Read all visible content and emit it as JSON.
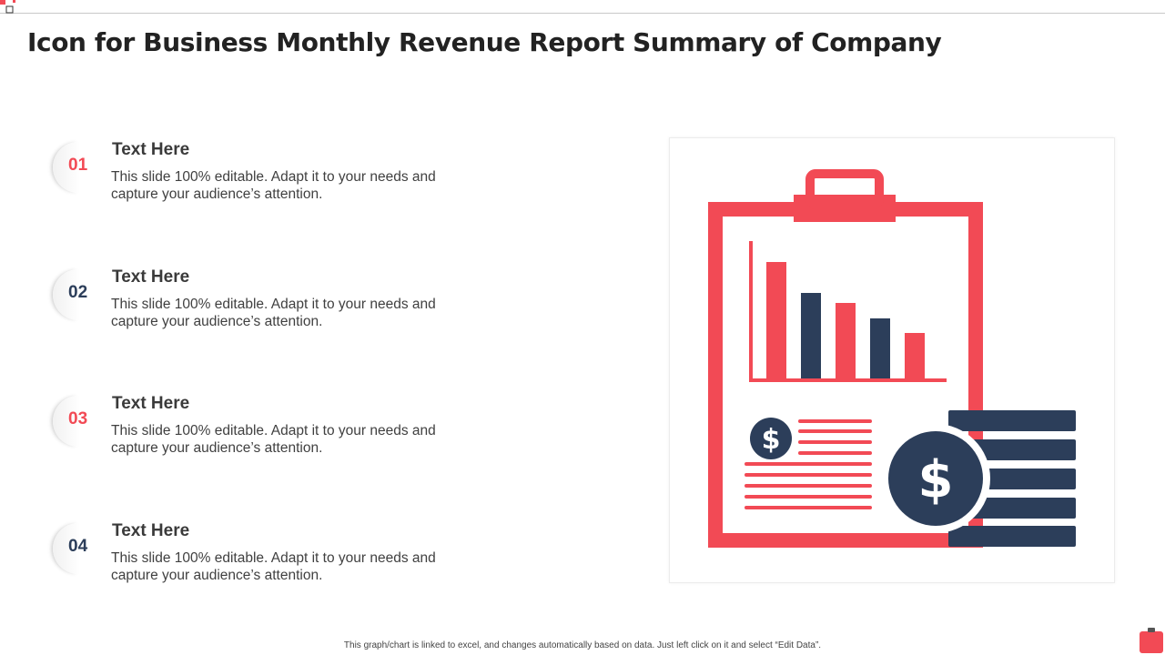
{
  "page": {
    "title": "Icon for Business Monthly Revenue Report Summary of Company"
  },
  "items": [
    {
      "number": "01",
      "heading": "Text Here",
      "body": "This slide 100% editable. Adapt it to your needs and capture your audience’s attention.",
      "accent": "red"
    },
    {
      "number": "02",
      "heading": "Text Here",
      "body": "This slide 100% editable. Adapt it to your needs and capture your audience’s attention.",
      "accent": "navy"
    },
    {
      "number": "03",
      "heading": "Text Here",
      "body": "This slide 100% editable. Adapt it to your needs and capture your audience’s attention.",
      "accent": "red"
    },
    {
      "number": "04",
      "heading": "Text Here",
      "body": "This slide 100% editable. Adapt it to your needs and capture your audience’s attention.",
      "accent": "navy"
    }
  ],
  "illustration": {
    "icon": "clipboard-revenue-report-icon",
    "parts": [
      "clipboard-icon",
      "bar-chart-icon",
      "dollar-coin-icon",
      "coin-stack-icon"
    ]
  },
  "footer": {
    "note": "This graph/chart is linked to excel, and changes automatically based on data. Just left click on it and select “Edit Data”."
  },
  "colors": {
    "accent_red": "#f24a55",
    "accent_navy": "#2c3e5a",
    "title_text": "#222222",
    "body_text": "#404040"
  }
}
